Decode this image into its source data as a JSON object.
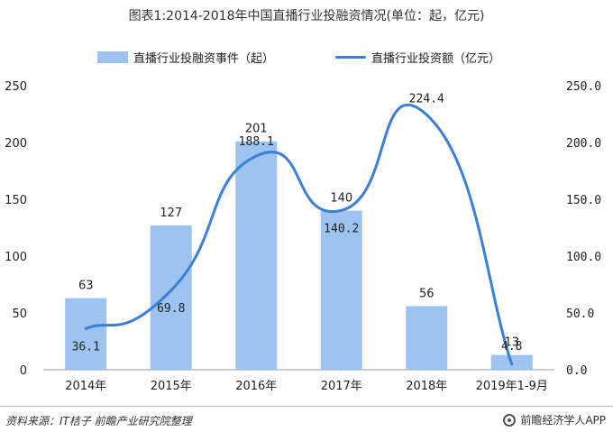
{
  "title": "图表1:2014-2018年中国直播行业投融资情况(单位：起，亿元)",
  "legend": {
    "bar_label": "直播行业投融资事件（起）",
    "line_label": "直播行业投资额（亿元）"
  },
  "source": "资料来源：IT桔子 前瞻产业研究院整理",
  "brand": "前瞻经济学人APP",
  "colors": {
    "bar": "#9dc3f1",
    "line": "#3b7fd6"
  },
  "chart_data": {
    "type": "bar+line",
    "categories": [
      "2014年",
      "2015年",
      "2016年",
      "2017年",
      "2018年",
      "2019年1-9月"
    ],
    "series": [
      {
        "name": "直播行业投融资事件（起）",
        "type": "bar",
        "axis": "left",
        "values": [
          63,
          127,
          201,
          140,
          56,
          13
        ],
        "labels": [
          "63",
          "127",
          "201",
          "140",
          "56",
          "13"
        ]
      },
      {
        "name": "直播行业投资额（亿元）",
        "type": "line",
        "axis": "right",
        "values": [
          36.1,
          69.8,
          188.1,
          140.2,
          224.4,
          4.8
        ],
        "labels": [
          "36.1",
          "69.8",
          "188.1",
          "140.2",
          "224.4",
          "4.8"
        ]
      }
    ],
    "left_axis": {
      "min": 0,
      "max": 250,
      "ticks": [
        "0",
        "50",
        "100",
        "150",
        "200",
        "250"
      ]
    },
    "right_axis": {
      "min": 0,
      "max": 250,
      "ticks": [
        "0.0",
        "50.0",
        "100.0",
        "150.0",
        "200.0",
        "250.0"
      ]
    },
    "grid": false,
    "legend_position": "top"
  }
}
